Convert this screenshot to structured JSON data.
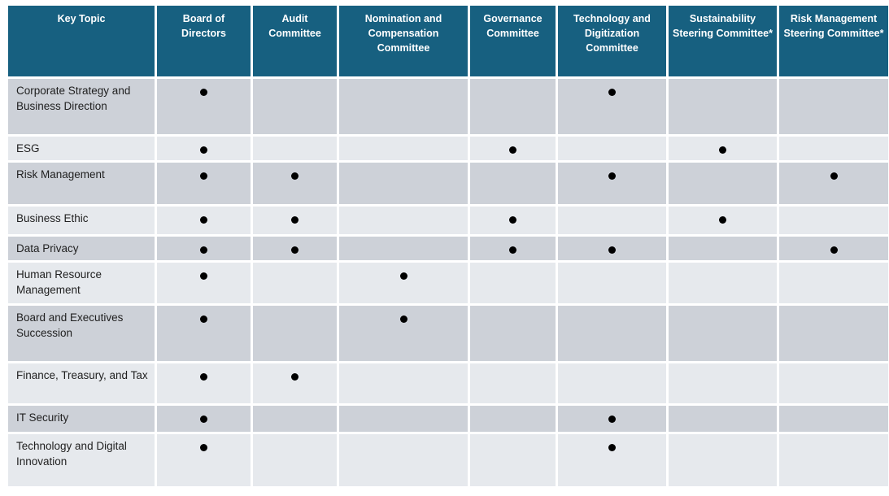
{
  "table": {
    "bullet_glyph": "●",
    "colors": {
      "header_bg": "#176080",
      "header_text": "#ffffff",
      "row_dark": "#CDD1D8",
      "row_light": "#E6E9ED",
      "bullet": "#000000"
    },
    "columns": [
      {
        "id": "key-topic",
        "label": "Key Topic"
      },
      {
        "id": "board-of-directors",
        "label": "Board of Directors"
      },
      {
        "id": "audit-committee",
        "label": "Audit Committee"
      },
      {
        "id": "nomination-and-compensation-committee",
        "label": "Nomination and Compensation Committee"
      },
      {
        "id": "governance-committee",
        "label": "Governance Committee"
      },
      {
        "id": "technology-and-digitization-committee",
        "label": "Technology and Digitization Committee"
      },
      {
        "id": "sustainability-steering-committee",
        "label": "Sustainability Steering Committee*"
      },
      {
        "id": "risk-management-steering-committee",
        "label": "Risk Management Steering Committee*"
      }
    ],
    "rows": [
      {
        "topic": "Corporate Strategy and Business Direction",
        "marks": [
          1,
          0,
          0,
          0,
          1,
          0,
          0
        ]
      },
      {
        "topic": "ESG",
        "marks": [
          1,
          0,
          0,
          1,
          0,
          1,
          0
        ]
      },
      {
        "topic": "Risk Management",
        "marks": [
          1,
          1,
          0,
          0,
          1,
          0,
          1
        ]
      },
      {
        "topic": "Business Ethic",
        "marks": [
          1,
          1,
          0,
          1,
          0,
          1,
          0
        ]
      },
      {
        "topic": "Data Privacy",
        "marks": [
          1,
          1,
          0,
          1,
          1,
          0,
          1
        ]
      },
      {
        "topic": "Human Resource Management",
        "marks": [
          1,
          0,
          1,
          0,
          0,
          0,
          0
        ]
      },
      {
        "topic": "Board and Executives Succession",
        "marks": [
          1,
          0,
          1,
          0,
          0,
          0,
          0
        ]
      },
      {
        "topic": "Finance, Treasury, and Tax",
        "marks": [
          1,
          1,
          0,
          0,
          0,
          0,
          0
        ]
      },
      {
        "topic": "IT Security",
        "marks": [
          1,
          0,
          0,
          0,
          1,
          0,
          0
        ]
      },
      {
        "topic": "Technology and Digital Innovation",
        "marks": [
          1,
          0,
          0,
          0,
          1,
          0,
          0
        ]
      }
    ]
  }
}
